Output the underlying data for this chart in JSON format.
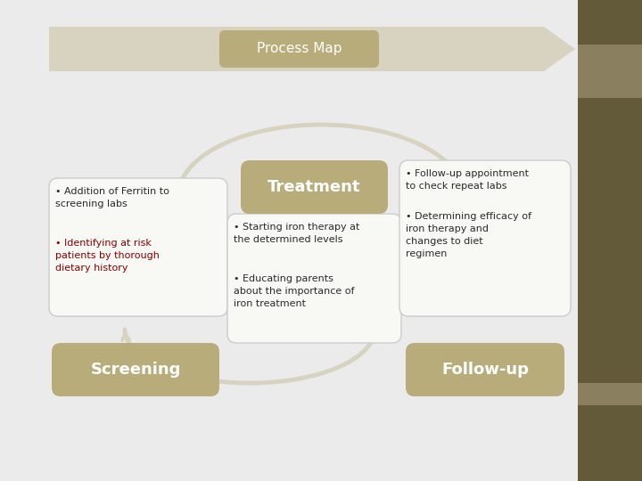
{
  "bg_color": "#ebebeb",
  "right_panel_dark": "#635a3a",
  "right_panel_mid": "#8a8060",
  "arrow_color": "#d8d3c0",
  "box_color_dark": "#b8ad7a",
  "box_color_light": "#cdc89a",
  "title_box_top": "#c8bc7a",
  "title_box_bot": "#e8e0a8",
  "text_white": "#ffffff",
  "text_dark": "#2a2a2a",
  "text_red": "#8b0000",
  "title": "Process Map",
  "screening_label": "Screening",
  "treatment_label": "Treatment",
  "followup_label": "Follow-up",
  "s_bullet1": "Addition of Ferritin to\nscreening labs",
  "s_bullet2": "Identifying at risk\npatients by thorough\ndietary history",
  "t_bullet1": "Starting iron therapy at\nthe determined levels",
  "t_bullet2": "Educating parents\nabout the importance of\niron treatment",
  "f_bullet1": "Follow-up appointment\nto check repeat labs",
  "f_bullet2": "Determining efficacy of\niron therapy and\nchanges to diet\nregimen",
  "figw": 7.2,
  "figh": 5.4,
  "dpi": 100
}
